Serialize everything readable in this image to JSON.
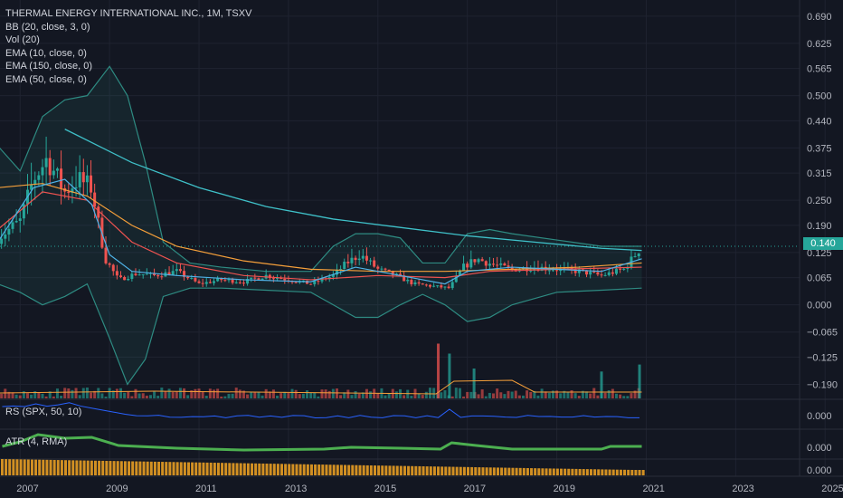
{
  "legend": {
    "title": "THERMAL ENERGY INTERNATIONAL INC., 1M, TSXV",
    "indicators": [
      "BB (20, close, 3, 0)",
      "Vol (20)",
      "EMA (10, close, 0)",
      "EMA (150, close, 0)",
      "EMA (50, close, 0)"
    ]
  },
  "panes": {
    "rs_label": "RS (SPX, 50, 10)",
    "rs_value": "0.000",
    "atr_label": "ATR (4, RMA)",
    "atr_value": "0.000",
    "bottom_value": "0.000"
  },
  "last_price": "0.140",
  "colors": {
    "up": "#26a69a",
    "down": "#ef5350",
    "bb_band": "#2e8b82",
    "ema10": "#4fb3e8",
    "ema50": "#ef5350",
    "ema150": "#f59f3a",
    "ema_long": "#3fc1c9",
    "rs": "#2962ff",
    "atr": "#4caf50",
    "bottom": "#f5a623"
  },
  "chart_data": {
    "type": "candlestick",
    "title": "THERMAL ENERGY INTERNATIONAL INC., 1M, TSXV",
    "x_ticks": [
      "2007",
      "2009",
      "2011",
      "2013",
      "2015",
      "2017",
      "2019",
      "2021",
      "2023",
      "2025"
    ],
    "y_ticks": [
      "0.690",
      "0.625",
      "0.565",
      "0.500",
      "0.440",
      "0.375",
      "0.315",
      "0.250",
      "0.190",
      "0.125",
      "0.065",
      "0.000",
      "−0.065",
      "−0.125",
      "−0.190"
    ],
    "ylim": [
      -0.215,
      0.72
    ],
    "last_value": 0.14,
    "close_series": {
      "x": [
        2006.5,
        2007.0,
        2007.3,
        2007.6,
        2008.0,
        2008.3,
        2008.6,
        2008.9,
        2009.2,
        2009.6,
        2010.0,
        2010.5,
        2011.0,
        2011.5,
        2012.0,
        2012.5,
        2013.0,
        2013.5,
        2014.0,
        2014.3,
        2014.6,
        2015.0,
        2015.4,
        2015.8,
        2016.2,
        2016.6,
        2016.9,
        2017.2,
        2017.6,
        2018.0,
        2018.5,
        2019.0,
        2019.5,
        2020.0,
        2020.5,
        2020.9
      ],
      "values": [
        0.16,
        0.2,
        0.3,
        0.35,
        0.27,
        0.3,
        0.28,
        0.11,
        0.06,
        0.075,
        0.07,
        0.08,
        0.05,
        0.06,
        0.055,
        0.07,
        0.06,
        0.05,
        0.07,
        0.1,
        0.12,
        0.085,
        0.07,
        0.05,
        0.045,
        0.04,
        0.09,
        0.11,
        0.095,
        0.085,
        0.09,
        0.085,
        0.08,
        0.07,
        0.085,
        0.14
      ]
    },
    "ema10": {
      "x": [
        2006.5,
        2007.3,
        2008.0,
        2008.6,
        2009.0,
        2009.5,
        2010.5,
        2012.0,
        2013.5,
        2014.5,
        2015.5,
        2016.5,
        2017.0,
        2018.0,
        2019.0,
        2020.0,
        2020.9
      ],
      "values": [
        0.15,
        0.28,
        0.3,
        0.24,
        0.12,
        0.08,
        0.07,
        0.06,
        0.055,
        0.09,
        0.07,
        0.05,
        0.08,
        0.09,
        0.085,
        0.08,
        0.11
      ]
    },
    "ema50": {
      "x": [
        2006.5,
        2007.5,
        2008.5,
        2009.5,
        2010.5,
        2012.0,
        2013.5,
        2015.0,
        2016.5,
        2017.5,
        2019.0,
        2020.9
      ],
      "values": [
        0.18,
        0.27,
        0.25,
        0.15,
        0.1,
        0.07,
        0.06,
        0.07,
        0.065,
        0.08,
        0.085,
        0.09
      ]
    },
    "ema150": {
      "x": [
        2006.5,
        2007.5,
        2008.5,
        2009.5,
        2010.5,
        2012.0,
        2013.5,
        2015.0,
        2016.5,
        2018.0,
        2019.5,
        2020.9
      ],
      "values": [
        0.28,
        0.29,
        0.26,
        0.19,
        0.14,
        0.105,
        0.085,
        0.08,
        0.08,
        0.085,
        0.09,
        0.1
      ]
    },
    "ema_long": {
      "x": [
        2008.0,
        2009.5,
        2011.0,
        2012.5,
        2014.0,
        2015.5,
        2017.0,
        2018.5,
        2020.0,
        2020.9
      ],
      "values": [
        0.42,
        0.34,
        0.28,
        0.235,
        0.205,
        0.185,
        0.165,
        0.15,
        0.135,
        0.13
      ]
    },
    "bb_upper": {
      "x": [
        2006.5,
        2007.0,
        2007.5,
        2008.0,
        2008.5,
        2009.0,
        2009.4,
        2009.8,
        2010.2,
        2010.8,
        2011.5,
        2012.5,
        2013.5,
        2014.0,
        2014.5,
        2015.0,
        2015.5,
        2016.0,
        2016.5,
        2017.0,
        2017.5,
        2018.0,
        2019.0,
        2020.0,
        2020.9
      ],
      "values": [
        0.38,
        0.32,
        0.45,
        0.49,
        0.5,
        0.57,
        0.5,
        0.34,
        0.15,
        0.1,
        0.09,
        0.08,
        0.08,
        0.14,
        0.17,
        0.17,
        0.16,
        0.1,
        0.1,
        0.17,
        0.18,
        0.17,
        0.155,
        0.14,
        0.14
      ]
    },
    "bb_lower": {
      "x": [
        2006.5,
        2007.0,
        2007.5,
        2008.0,
        2008.5,
        2009.0,
        2009.4,
        2009.8,
        2010.2,
        2010.8,
        2011.5,
        2012.5,
        2013.5,
        2014.0,
        2014.5,
        2015.0,
        2015.5,
        2016.0,
        2016.5,
        2017.0,
        2017.5,
        2018.0,
        2019.0,
        2020.0,
        2020.9
      ],
      "values": [
        0.05,
        0.03,
        0.0,
        0.02,
        0.05,
        -0.08,
        -0.19,
        -0.13,
        0.02,
        0.04,
        0.04,
        0.035,
        0.03,
        0.0,
        -0.03,
        -0.03,
        0.0,
        0.025,
        0.0,
        -0.04,
        -0.03,
        0.0,
        0.03,
        0.035,
        0.04
      ]
    },
    "volume_spikes": {
      "x": [
        2016.35,
        2016.6,
        2017.15,
        2020.0,
        2020.85
      ],
      "heights": [
        0.55,
        0.45,
        0.3,
        0.27,
        0.34
      ]
    }
  }
}
